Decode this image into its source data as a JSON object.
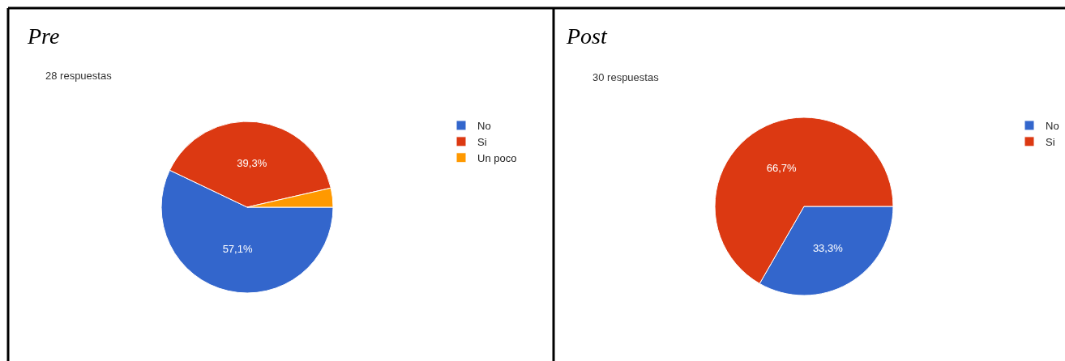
{
  "chart_data": [
    {
      "type": "pie",
      "title": "Pre",
      "subtitle": "28 respuestas",
      "categories": [
        "No",
        "Si",
        "Un poco"
      ],
      "values": [
        57.1,
        39.3,
        3.6
      ],
      "colors": [
        "#3366cc",
        "#dc3912",
        "#ff9900"
      ],
      "value_labels": [
        "57,1%",
        "39,3%",
        null
      ],
      "legend": "top right"
    },
    {
      "type": "pie",
      "title": "Post",
      "subtitle": "30 respuestas",
      "categories": [
        "No",
        "Si"
      ],
      "values": [
        33.3,
        66.7
      ],
      "colors": [
        "#3366cc",
        "#dc3912"
      ],
      "value_labels": [
        "33,3%",
        "66,7%"
      ],
      "legend": "top right"
    }
  ]
}
